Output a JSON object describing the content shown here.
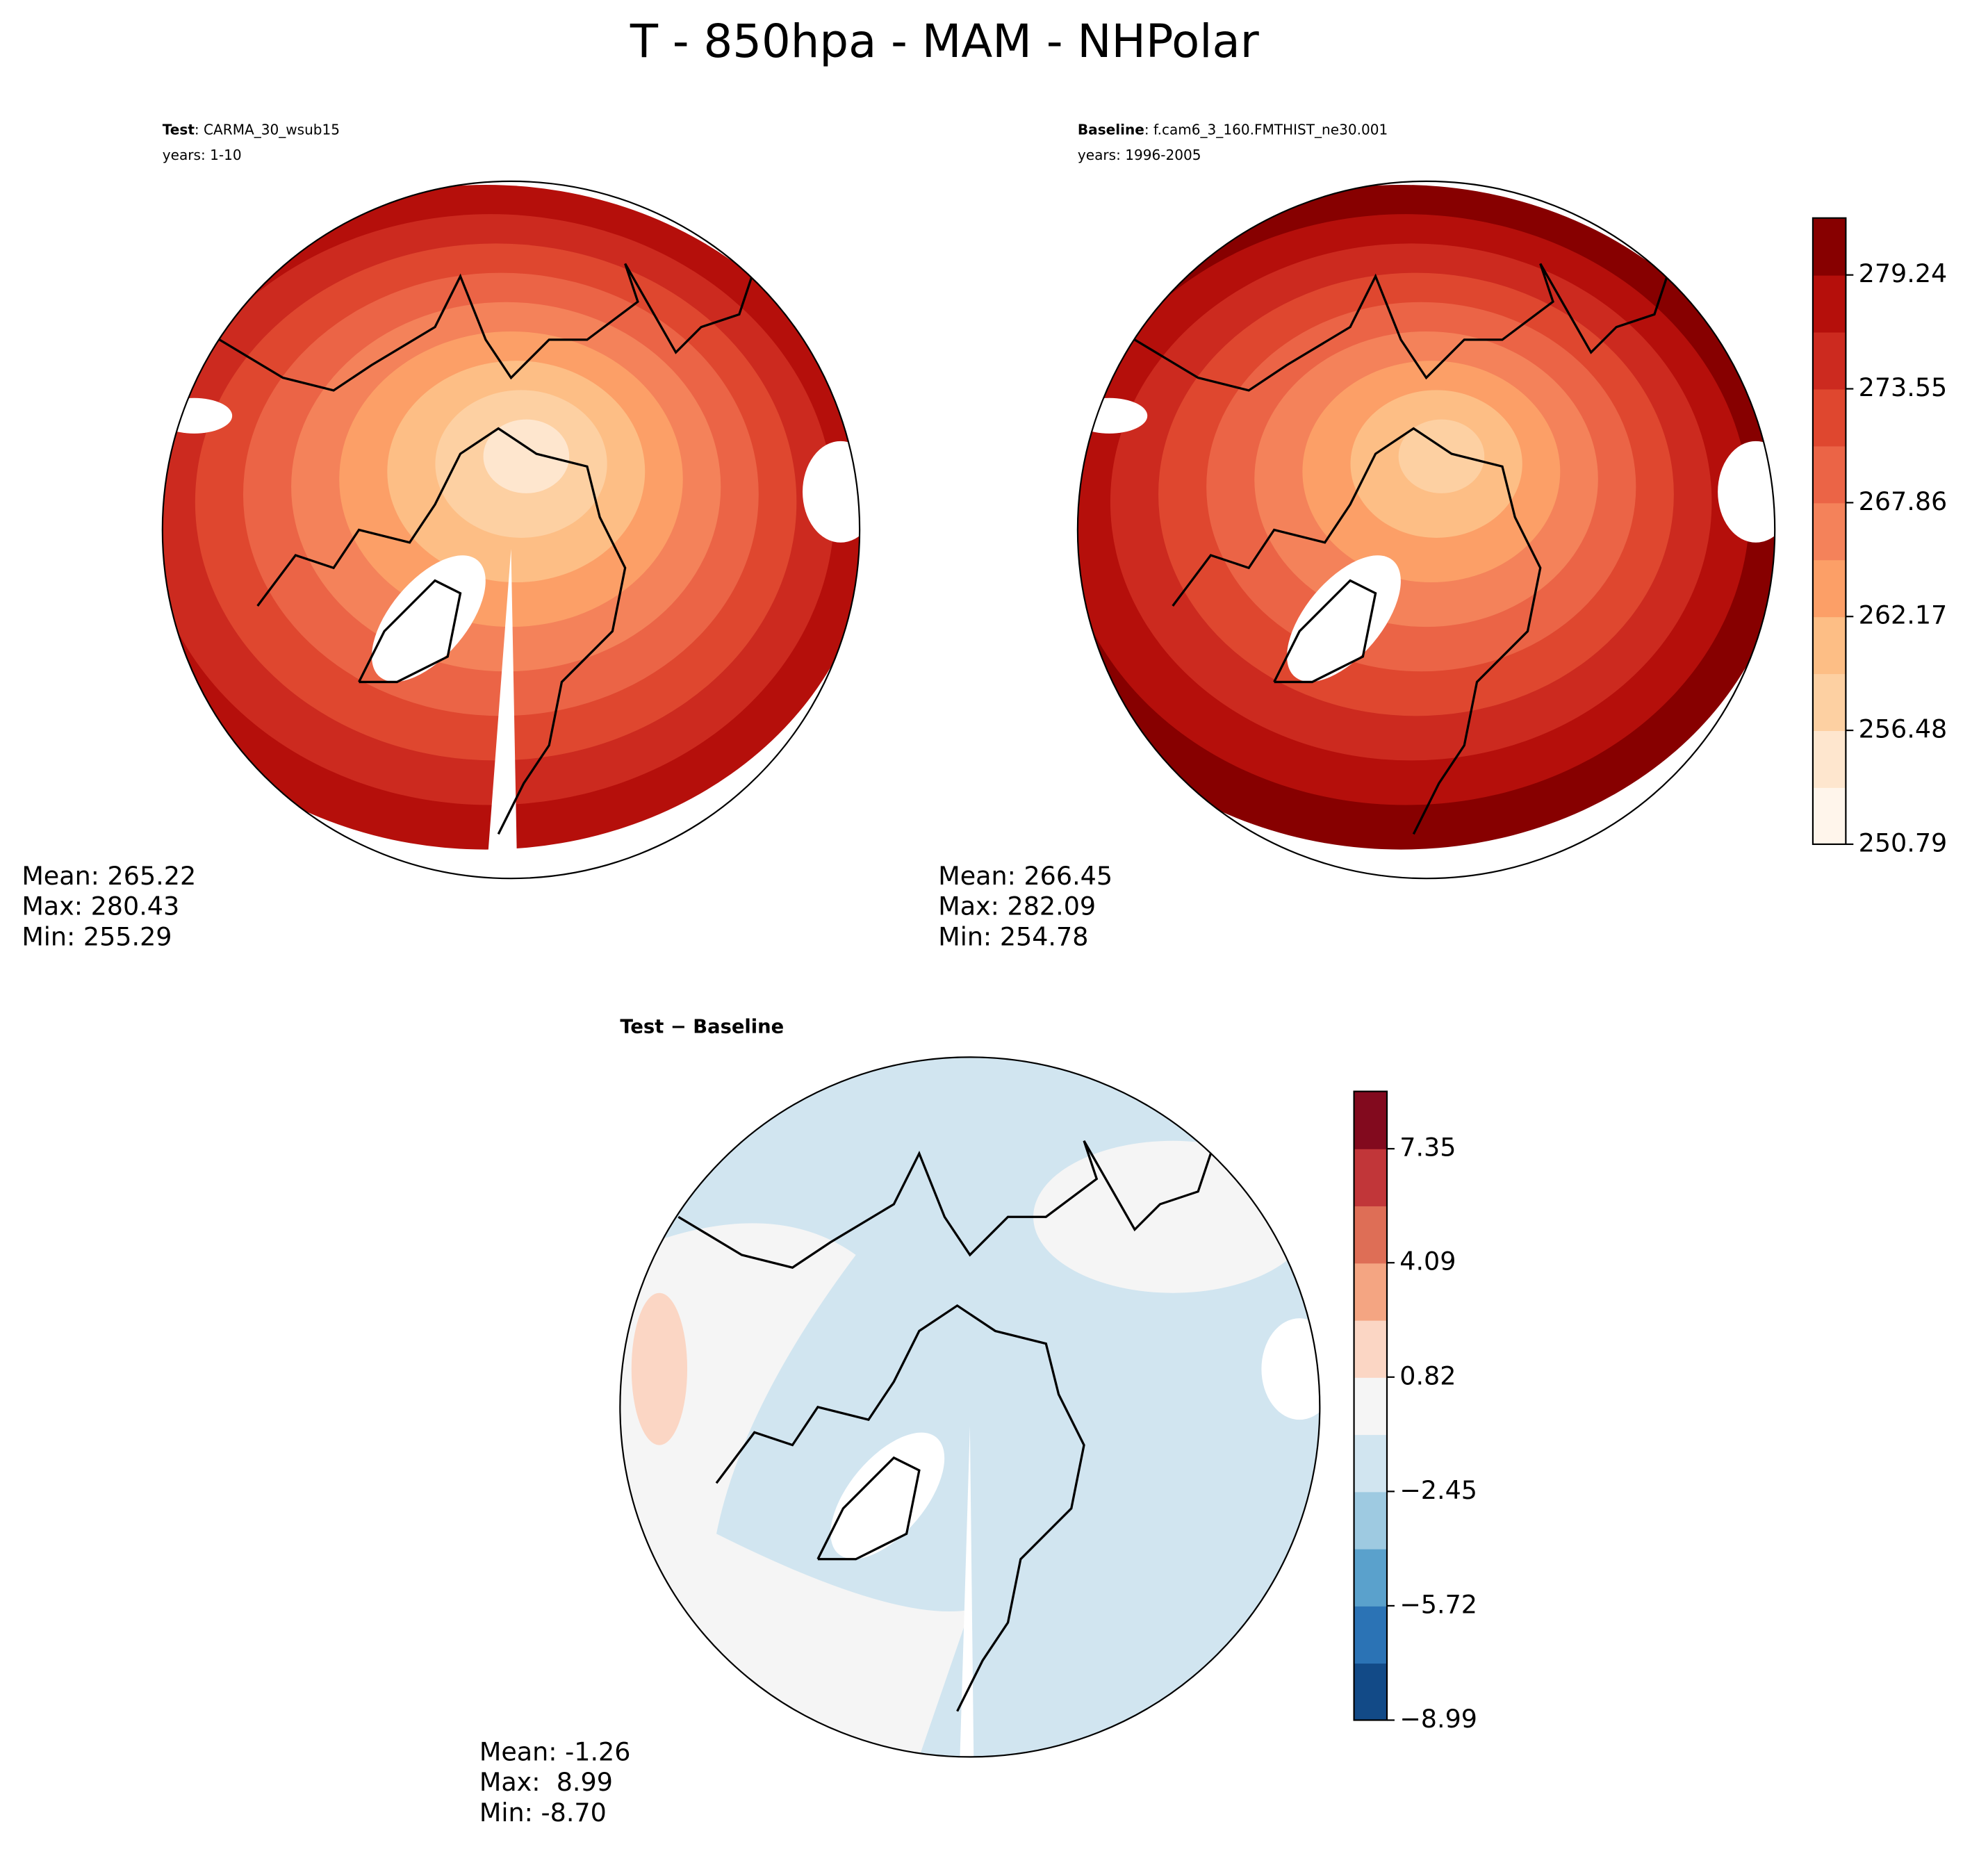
{
  "title": "T - 850hpa - MAM - NHPolar",
  "panels": [
    {
      "type": "map",
      "case_label": "Test",
      "case_name": ": CARMA_30_wsub15",
      "years": "years: 1-10",
      "stats": [
        "Mean: 265.22",
        "Max: 280.43",
        "Min: 255.29"
      ],
      "colorbar": 0
    },
    {
      "type": "map",
      "case_label": "Baseline",
      "case_name": ": f.cam6_3_160.FMTHIST_ne30.001",
      "years": "years: 1996-2005",
      "stats": [
        "Mean: 266.45",
        "Max: 282.09",
        "Min: 254.78"
      ],
      "colorbar": 0
    },
    {
      "type": "diff-map",
      "case_label": "Test − Baseline",
      "stats": [
        "Mean: -1.26",
        "Max:  8.99",
        "Min: -8.70"
      ],
      "colorbar": 1
    }
  ],
  "colorbars": [
    {
      "lim": [
        250.79,
        282.085
      ],
      "ticks": [
        250.79,
        256.48,
        262.17,
        267.86,
        273.55,
        279.24
      ],
      "colors": [
        "#fff5eb",
        "#fee6ce",
        "#fdd0a2",
        "#fdbe85",
        "#fc9f67",
        "#f4825a",
        "#eb6446",
        "#df472f",
        "#cc2a1f",
        "#b50f0b",
        "#870000"
      ]
    },
    {
      "lim": [
        -8.99,
        8.99
      ],
      "ticks": [
        {
          "value": -8.99,
          "label": "−8.99"
        },
        {
          "value": -5.72,
          "label": "−5.72"
        },
        {
          "value": -2.45,
          "label": "−2.45"
        },
        0.82,
        4.09,
        7.35
      ],
      "colors": [
        "#124a87",
        "#2b73b5",
        "#5aa1cc",
        "#9ecae1",
        "#d1e5f0",
        "#f5f5f5",
        "#fbd6c4",
        "#f4a582",
        "#de6e56",
        "#c13639",
        "#820a1e"
      ]
    }
  ]
}
